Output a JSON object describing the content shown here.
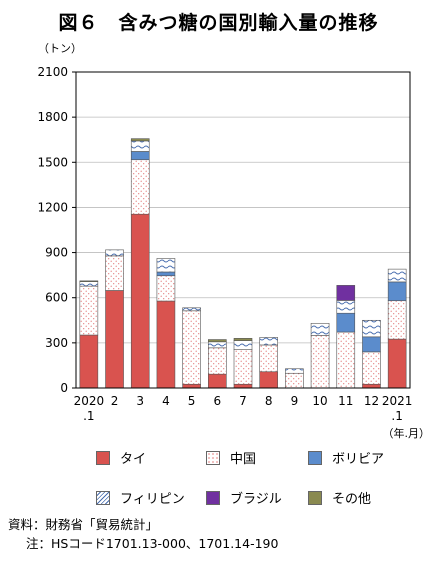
{
  "title": "図６　含みつ糖の国別輸入量の推移",
  "chart_data": {
    "type": "bar",
    "stacked": true,
    "yunit": "（トン）",
    "xunit": "（年.月）",
    "ylim": [
      0,
      2100
    ],
    "yticks": [
      "0",
      "300",
      "600",
      "900",
      "1200",
      "1500",
      "1800",
      "2100"
    ],
    "categories": [
      "2020\n.1",
      "2",
      "3",
      "4",
      "5",
      "6",
      "7",
      "8",
      "9",
      "10",
      "11",
      "12",
      "2021\n.1"
    ],
    "series": [
      {
        "name": "タイ",
        "color": "#d9534f",
        "values": [
          352,
          648,
          1155,
          578,
          25,
          92,
          25,
          108,
          0,
          0,
          0,
          25,
          325
        ]
      },
      {
        "name": "中国",
        "color": "#ffffff",
        "values": [
          325,
          230,
          362,
          168,
          488,
          175,
          230,
          178,
          98,
          350,
          372,
          215,
          255
        ]
      },
      {
        "name": "ボリビア",
        "color": "#5b8ccc",
        "values": [
          0,
          0,
          55,
          25,
          0,
          0,
          0,
          0,
          0,
          0,
          125,
          100,
          125
        ]
      },
      {
        "name": "フィリピン",
        "color": "#ffffff",
        "values": [
          30,
          40,
          70,
          90,
          20,
          40,
          60,
          50,
          30,
          80,
          85,
          110,
          85
        ]
      },
      {
        "name": "ブラジル",
        "color": "#7030a0",
        "values": [
          0,
          0,
          0,
          0,
          0,
          0,
          0,
          0,
          0,
          0,
          100,
          0,
          0
        ]
      },
      {
        "name": "その他",
        "color": "#8a8a50",
        "values": [
          5,
          0,
          15,
          0,
          0,
          15,
          15,
          0,
          0,
          0,
          0,
          0,
          0
        ]
      }
    ]
  },
  "notes": {
    "source": "資料：財務省「貿易統計」",
    "note": "注：HSコード1701.13-000、1701.14-190"
  }
}
